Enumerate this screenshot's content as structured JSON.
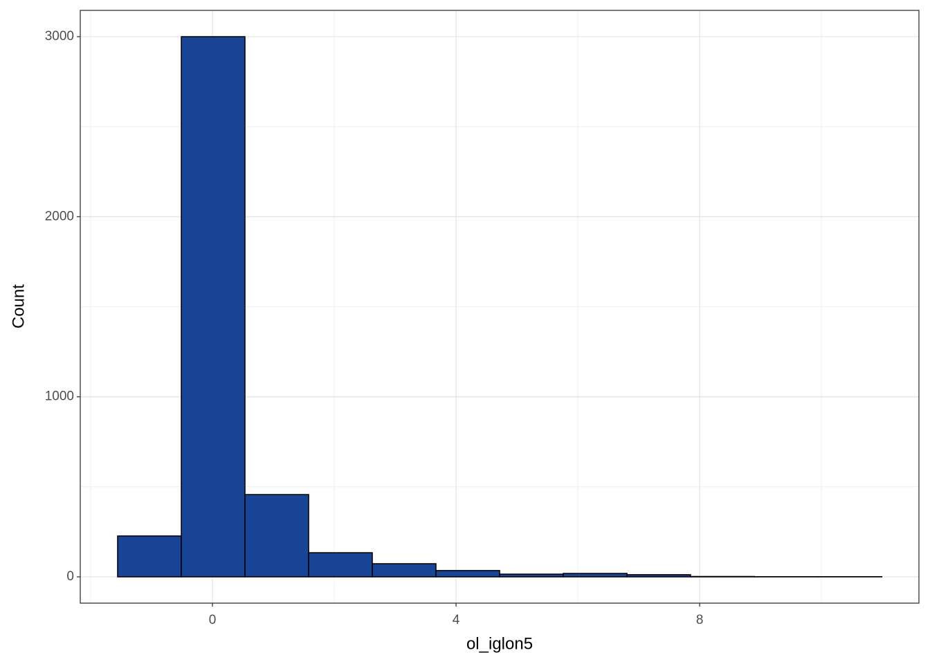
{
  "chart_data": {
    "type": "histogram",
    "x_label": "ol_iglon5",
    "y_label": "Count",
    "bins": [
      -1.557,
      -0.511,
      0.534,
      1.58,
      2.625,
      3.67,
      4.716,
      5.76,
      6.807,
      7.85,
      8.9,
      9.94,
      10.99
    ],
    "values": [
      227,
      3000,
      457,
      134,
      73,
      35,
      15,
      19,
      12,
      2,
      1,
      1
    ],
    "color": "#1a4496",
    "edgecolor": "#000000",
    "xlim": [
      -2.17,
      11.6
    ],
    "ylim": [
      -146,
      3146
    ],
    "xticks": [
      0,
      4,
      8
    ],
    "yticks": [
      0,
      1000,
      2000,
      3000
    ],
    "grid": true
  }
}
